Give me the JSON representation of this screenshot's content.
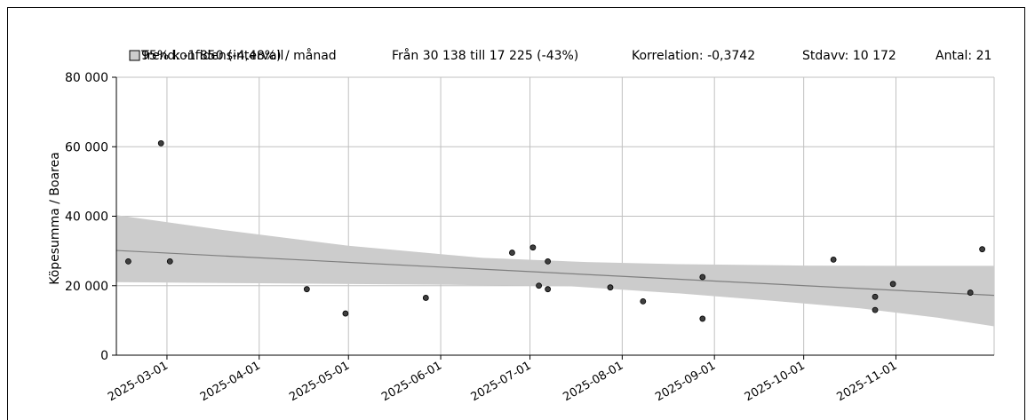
{
  "chart_data": {
    "type": "scatter",
    "ylabel": "Köpesumma / Boarea",
    "ylim": [
      0,
      80000
    ],
    "yticks": [
      0,
      20000,
      40000,
      60000,
      80000
    ],
    "ytick_labels": [
      "0",
      "20 000",
      "40 000",
      "60 000",
      "80 000"
    ],
    "xlim": [
      "2025-02-12",
      "2025-12-04"
    ],
    "xticks": [
      "2025-03-01",
      "2025-04-01",
      "2025-05-01",
      "2025-06-01",
      "2025-07-01",
      "2025-08-01",
      "2025-09-01",
      "2025-10-01",
      "2025-11-01"
    ],
    "grid": true,
    "legend": {
      "confidence_label": "95% konfidensintervall",
      "trend_label": "Trend: -1 850 (-4,48%) / månad",
      "range_text": "Från 30 138 till 17 225 (-43%)",
      "correlation_text": "Korrelation: -0,3742",
      "stdev_text": "Stdavv: 10 172",
      "count_text": "Antal: 21"
    },
    "trend": {
      "start": {
        "x": "2025-02-12",
        "y": 30138
      },
      "end": {
        "x": "2025-12-04",
        "y": 17225
      }
    },
    "confidence_band": {
      "upper": [
        {
          "x": "2025-02-12",
          "y": 40300
        },
        {
          "x": "2025-03-20",
          "y": 36000
        },
        {
          "x": "2025-05-01",
          "y": 31500
        },
        {
          "x": "2025-06-15",
          "y": 28000
        },
        {
          "x": "2025-07-20",
          "y": 26800
        },
        {
          "x": "2025-08-20",
          "y": 26200
        },
        {
          "x": "2025-10-01",
          "y": 25800
        },
        {
          "x": "2025-11-01",
          "y": 25700
        },
        {
          "x": "2025-12-04",
          "y": 25700
        }
      ],
      "lower": [
        {
          "x": "2025-02-12",
          "y": 21000
        },
        {
          "x": "2025-04-01",
          "y": 20700
        },
        {
          "x": "2025-06-01",
          "y": 20300
        },
        {
          "x": "2025-07-15",
          "y": 19800
        },
        {
          "x": "2025-08-20",
          "y": 17800
        },
        {
          "x": "2025-09-20",
          "y": 15700
        },
        {
          "x": "2025-10-20",
          "y": 13500
        },
        {
          "x": "2025-11-15",
          "y": 10800
        },
        {
          "x": "2025-12-04",
          "y": 8300
        }
      ]
    },
    "points": [
      {
        "x": "2025-02-16",
        "y": 27000
      },
      {
        "x": "2025-02-27",
        "y": 61000
      },
      {
        "x": "2025-03-02",
        "y": 27000
      },
      {
        "x": "2025-04-17",
        "y": 19000
      },
      {
        "x": "2025-04-30",
        "y": 12000
      },
      {
        "x": "2025-05-27",
        "y": 16500
      },
      {
        "x": "2025-06-25",
        "y": 29500
      },
      {
        "x": "2025-07-02",
        "y": 31000
      },
      {
        "x": "2025-07-04",
        "y": 20000
      },
      {
        "x": "2025-07-07",
        "y": 27000
      },
      {
        "x": "2025-07-07",
        "y": 19000
      },
      {
        "x": "2025-07-28",
        "y": 19500
      },
      {
        "x": "2025-08-08",
        "y": 15500
      },
      {
        "x": "2025-08-28",
        "y": 22500
      },
      {
        "x": "2025-08-28",
        "y": 10500
      },
      {
        "x": "2025-10-11",
        "y": 27500
      },
      {
        "x": "2025-10-25",
        "y": 16800
      },
      {
        "x": "2025-10-25",
        "y": 13000
      },
      {
        "x": "2025-10-31",
        "y": 20500
      },
      {
        "x": "2025-11-26",
        "y": 18000
      },
      {
        "x": "2025-11-30",
        "y": 30500
      }
    ],
    "colors": {
      "band": "#cccccc",
      "trend": "#7f7f7f",
      "point_fill": "#3f3f3f",
      "point_stroke": "#000000",
      "grid": "#c0c0c0",
      "axis": "#000000"
    }
  }
}
